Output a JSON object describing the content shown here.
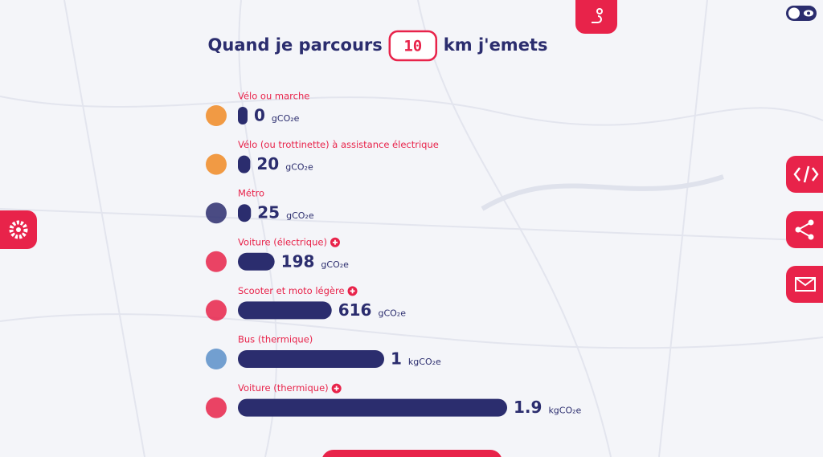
{
  "header": {
    "title_before": "Quand je parcours",
    "distance": 10,
    "title_after": "km j'emets"
  },
  "rows": [
    {
      "label": "Vélo ou marche",
      "value": 0,
      "unit": "gCO₂e"
    },
    {
      "label": "Vélo (ou trottinette) à assistance électrique",
      "value": 20,
      "unit": "gCO₂e"
    },
    {
      "label": "Métro",
      "value": 25,
      "unit": "gCO₂e"
    },
    {
      "label": "Voiture (électrique)",
      "value": 198,
      "unit": "gCO₂e"
    },
    {
      "label": "Scooter et moto légère",
      "value": 616,
      "unit": "gCO₂e"
    },
    {
      "label": "Bus (thermique)",
      "value": 1,
      "unit": "kgCO₂e"
    },
    {
      "label": "Voiture (thermique)",
      "value": 1.9,
      "unit": "kgCO₂e"
    }
  ]
}
